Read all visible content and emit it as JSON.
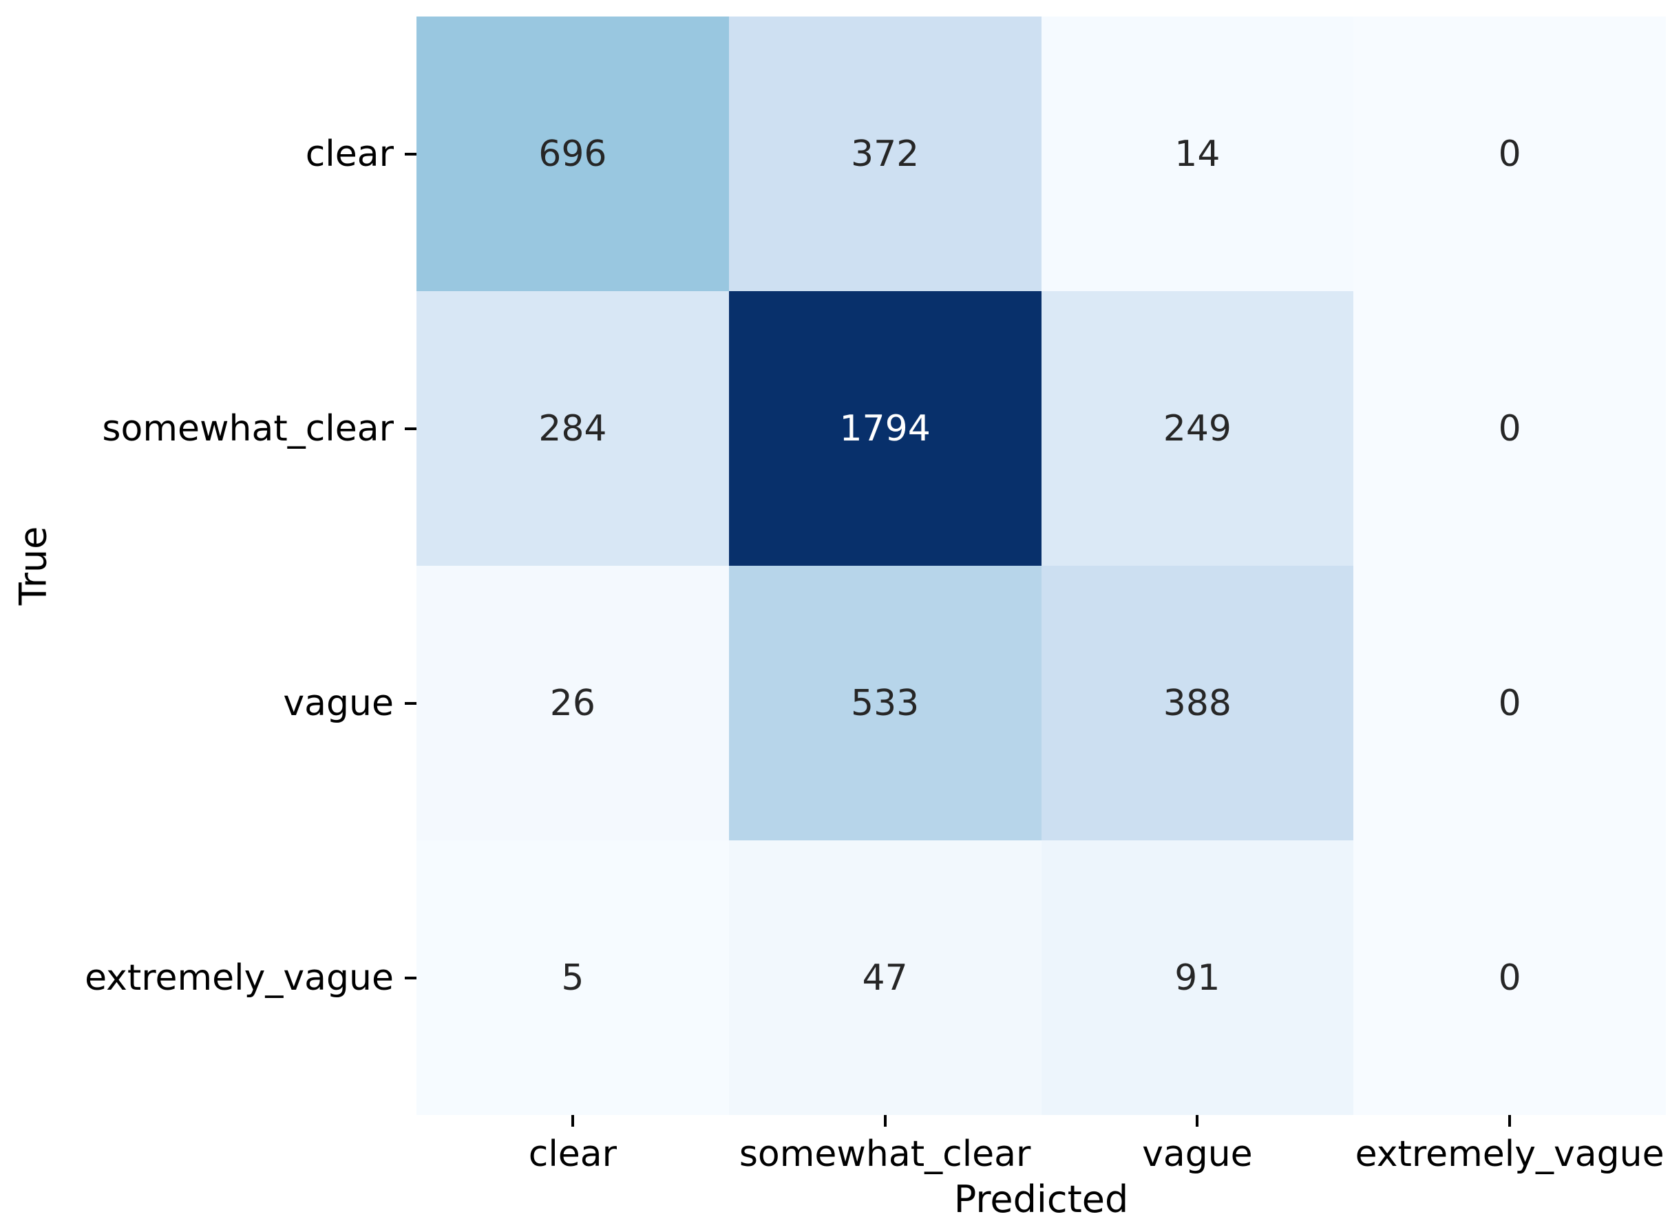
{
  "figure": {
    "background_color": "#ffffff",
    "axis_text_color": "#000000"
  },
  "chart_data": {
    "type": "heatmap",
    "title": "",
    "xlabel": "Predicted",
    "ylabel": "True",
    "x_categories": [
      "clear",
      "somewhat_clear",
      "vague",
      "extremely_vague"
    ],
    "y_categories": [
      "clear",
      "somewhat_clear",
      "vague",
      "extremely_vague"
    ],
    "matrix": [
      [
        696,
        372,
        14,
        0
      ],
      [
        284,
        1794,
        249,
        0
      ],
      [
        26,
        533,
        388,
        0
      ],
      [
        5,
        47,
        91,
        0
      ]
    ],
    "vmin": 0,
    "vmax": 1794,
    "colormap": "Blues",
    "colormap_stops": [
      [
        0.0,
        [
          247,
          251,
          255
        ]
      ],
      [
        0.125,
        [
          222,
          235,
          247
        ]
      ],
      [
        0.25,
        [
          198,
          219,
          239
        ]
      ],
      [
        0.375,
        [
          158,
          202,
          225
        ]
      ],
      [
        0.5,
        [
          107,
          174,
          214
        ]
      ],
      [
        0.625,
        [
          66,
          146,
          198
        ]
      ],
      [
        0.75,
        [
          33,
          113,
          181
        ]
      ],
      [
        0.875,
        [
          8,
          81,
          156
        ]
      ],
      [
        1.0,
        [
          8,
          48,
          107
        ]
      ]
    ],
    "annotation_dark_color": "#262626",
    "annotation_light_color": "#ffffff",
    "light_text_threshold": 0.5,
    "grid": false,
    "legend": "none",
    "colorbar": false
  }
}
